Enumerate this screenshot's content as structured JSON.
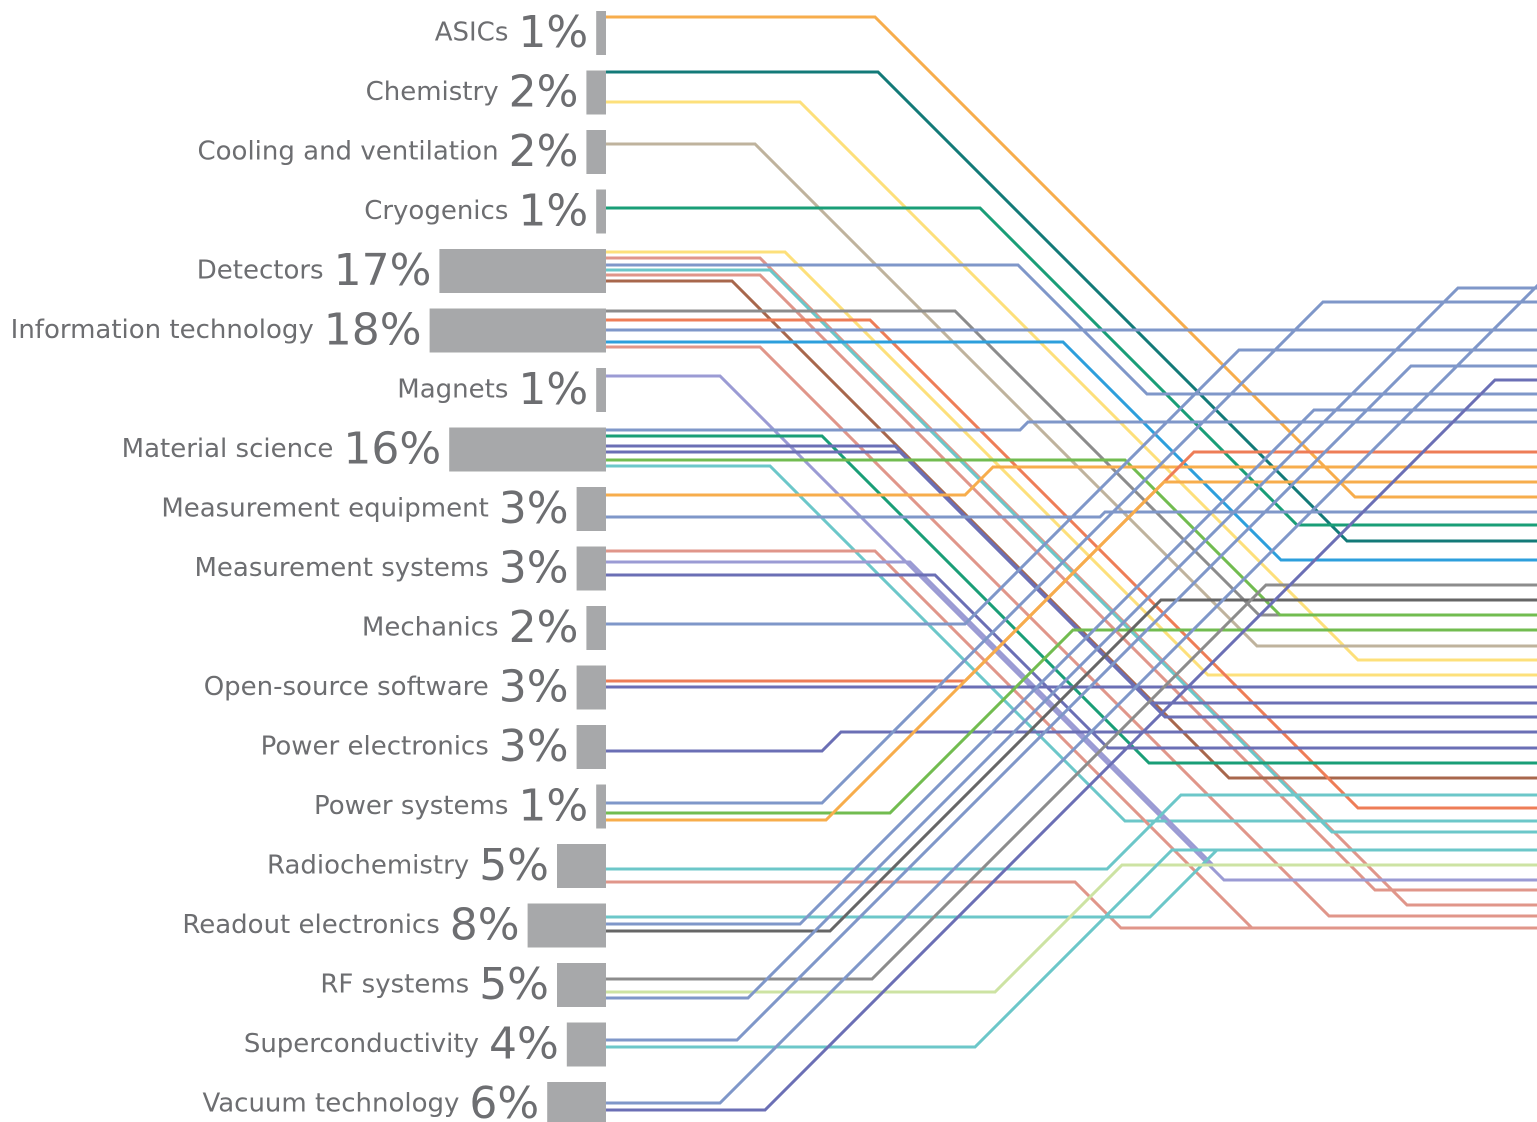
{
  "chart_data": {
    "type": "bar",
    "orientation": "horizontal",
    "categories": [
      "ASICs",
      "Chemistry",
      "Cooling and ventilation",
      "Cryogenics",
      "Detectors",
      "Information technology",
      "Magnets",
      "Material science",
      "Measurement equipment",
      "Measurement systems",
      "Mechanics",
      "Open-source software",
      "Power electronics",
      "Power systems",
      "Radiochemistry",
      "Readout electronics",
      "RF systems",
      "Superconductivity",
      "Vacuum technology"
    ],
    "values": [
      1,
      2,
      2,
      1,
      17,
      18,
      1,
      16,
      3,
      3,
      2,
      3,
      3,
      1,
      5,
      8,
      5,
      4,
      6
    ],
    "value_labels": [
      "1%",
      "2%",
      "2%",
      "1%",
      "17%",
      "18%",
      "1%",
      "16%",
      "3%",
      "3%",
      "2%",
      "3%",
      "3%",
      "1%",
      "5%",
      "8%",
      "5%",
      "4%",
      "6%"
    ],
    "color": "#a7a8aa"
  }
}
